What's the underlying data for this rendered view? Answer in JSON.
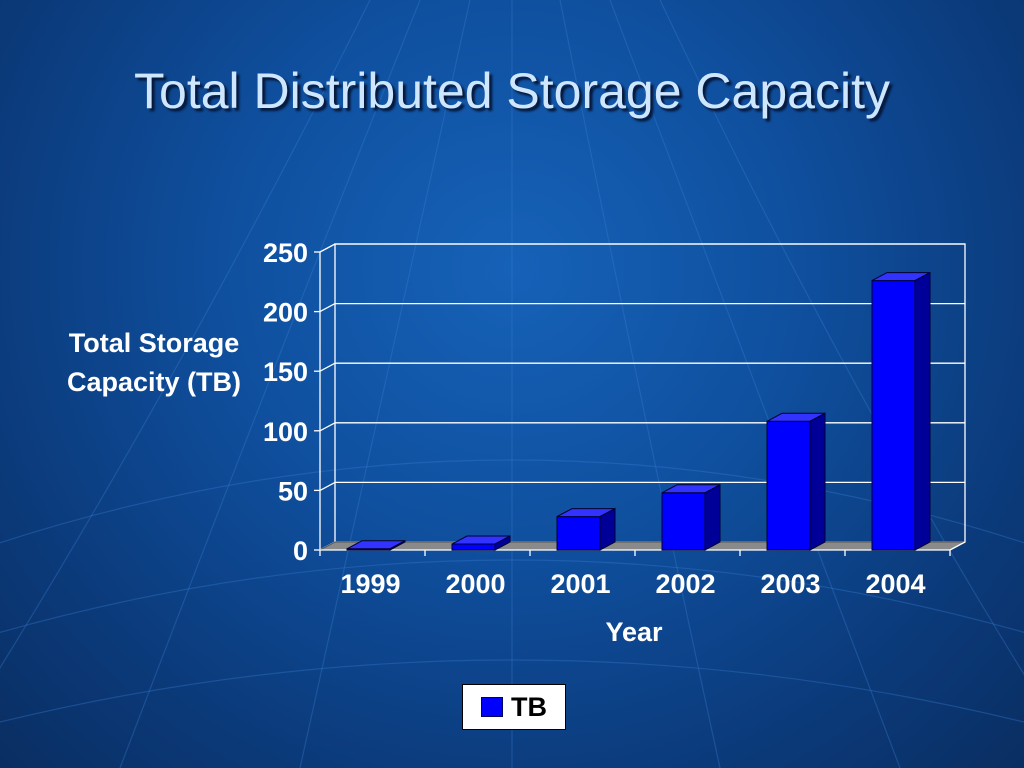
{
  "slide": {
    "title": "Total Distributed Storage Capacity"
  },
  "chart_data": {
    "type": "bar",
    "categories": [
      "1999",
      "2000",
      "2001",
      "2002",
      "2003",
      "2004"
    ],
    "series": [
      {
        "name": "TB",
        "values": [
          1,
          5,
          28,
          48,
          108,
          226
        ]
      }
    ],
    "ylabel": "Total Storage Capacity (TB)",
    "xlabel": "Year",
    "ylim": [
      0,
      250
    ],
    "yticks": [
      0,
      50,
      100,
      150,
      200,
      250
    ],
    "grid": true,
    "legend": "bottom",
    "bar_color": "#0000ff",
    "bar_top_color": "#3333ff",
    "bar_side_color": "#000099",
    "floor_color": "#8a8a8a",
    "gridline_color": "#ffffff",
    "axis_text_color": "#ffffff"
  },
  "legend": {
    "label": "TB"
  }
}
